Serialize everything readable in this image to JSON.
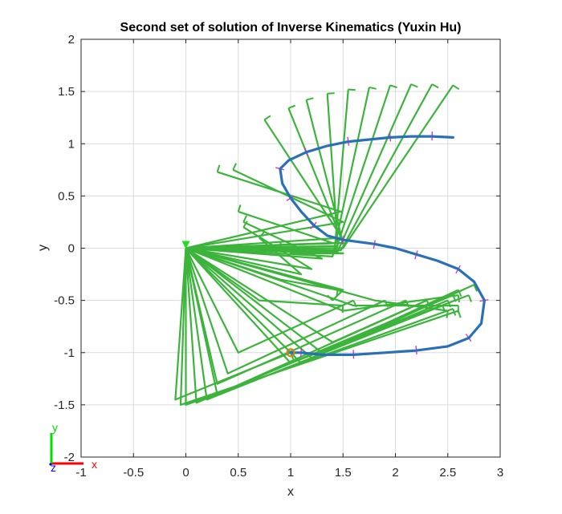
{
  "chart_data": {
    "type": "line",
    "title": "Second set of solution of Inverse Kinematics (Yuxin Hu)",
    "xlabel": "x",
    "ylabel": "y",
    "xlim": [
      -1,
      3
    ],
    "ylim": [
      -2,
      2
    ],
    "xticks": [
      "-1",
      "-0.5",
      "0",
      "0.5",
      "1",
      "1.5",
      "2",
      "2.5",
      "3"
    ],
    "yticks": [
      "-2",
      "-1.5",
      "-1",
      "-0.5",
      "0",
      "0.5",
      "1",
      "1.5",
      "2"
    ],
    "grid": true,
    "colors": {
      "path": "#2a70b8",
      "arm": "#3cb43c",
      "normals": "#e020e0",
      "start_marker": "#d08020",
      "triad_x": "#ff0000",
      "triad_y": "#00dd00",
      "triad_z": "#0000ff"
    },
    "triad_labels": {
      "x": "x",
      "y": "y",
      "z": "z"
    },
    "base": [
      0,
      0
    ],
    "start_marker": [
      1.0,
      -1.0
    ],
    "path": [
      [
        2.55,
        1.06
      ],
      [
        2.35,
        1.07
      ],
      [
        2.15,
        1.07
      ],
      [
        1.95,
        1.06
      ],
      [
        1.75,
        1.04
      ],
      [
        1.55,
        1.02
      ],
      [
        1.35,
        0.98
      ],
      [
        1.15,
        0.92
      ],
      [
        0.98,
        0.84
      ],
      [
        0.9,
        0.76
      ],
      [
        0.92,
        0.62
      ],
      [
        1.0,
        0.48
      ],
      [
        1.1,
        0.35
      ],
      [
        1.22,
        0.22
      ],
      [
        1.35,
        0.12
      ],
      [
        1.5,
        0.08
      ],
      [
        1.65,
        0.06
      ],
      [
        1.8,
        0.04
      ],
      [
        2.0,
        0.0
      ],
      [
        2.2,
        -0.06
      ],
      [
        2.4,
        -0.12
      ],
      [
        2.6,
        -0.2
      ],
      [
        2.75,
        -0.32
      ],
      [
        2.85,
        -0.5
      ],
      [
        2.82,
        -0.72
      ],
      [
        2.7,
        -0.86
      ],
      [
        2.5,
        -0.94
      ],
      [
        2.2,
        -0.98
      ],
      [
        1.9,
        -1.0
      ],
      [
        1.6,
        -1.02
      ],
      [
        1.3,
        -1.02
      ],
      [
        1.1,
        -1.0
      ],
      [
        1.0,
        -1.0
      ]
    ],
    "arm_links": [
      [
        [
          0,
          0
        ],
        [
          1.5,
          0
        ],
        [
          2.55,
          1.56
        ]
      ],
      [
        [
          0,
          0
        ],
        [
          1.48,
          -0.02
        ],
        [
          2.35,
          1.57
        ]
      ],
      [
        [
          0,
          0
        ],
        [
          1.45,
          -0.03
        ],
        [
          2.15,
          1.57
        ]
      ],
      [
        [
          0,
          0
        ],
        [
          1.42,
          -0.05
        ],
        [
          1.95,
          1.56
        ]
      ],
      [
        [
          0,
          0
        ],
        [
          1.4,
          -0.08
        ],
        [
          1.75,
          1.54
        ]
      ],
      [
        [
          0,
          0
        ],
        [
          1.42,
          -0.02
        ],
        [
          1.55,
          1.52
        ]
      ],
      [
        [
          0,
          0
        ],
        [
          1.45,
          0.02
        ],
        [
          1.35,
          1.48
        ]
      ],
      [
        [
          0,
          0
        ],
        [
          1.5,
          0.05
        ],
        [
          1.15,
          1.42
        ]
      ],
      [
        [
          0,
          0
        ],
        [
          1.5,
          0.05
        ],
        [
          0.98,
          1.34
        ]
      ],
      [
        [
          0,
          0
        ],
        [
          1.49,
          0.1
        ],
        [
          0.75,
          1.23
        ]
      ],
      [
        [
          0,
          0
        ],
        [
          1.5,
          0.25
        ],
        [
          0.45,
          0.75
        ]
      ],
      [
        [
          0,
          0
        ],
        [
          1.48,
          0.35
        ],
        [
          0.3,
          0.73
        ]
      ],
      [
        [
          0,
          0
        ],
        [
          1.4,
          0.05
        ],
        [
          0.5,
          0.35
        ]
      ],
      [
        [
          0,
          0
        ],
        [
          1.3,
          -0.1
        ],
        [
          0.55,
          0.25
        ]
      ],
      [
        [
          0,
          0
        ],
        [
          1.2,
          -0.2
        ],
        [
          0.55,
          0.2
        ]
      ],
      [
        [
          0,
          0
        ],
        [
          1.1,
          -0.25
        ],
        [
          0.7,
          0.1
        ]
      ],
      [
        [
          0,
          0
        ],
        [
          1.5,
          -0.05
        ],
        [
          0.9,
          0.0
        ]
      ],
      [
        [
          0,
          0
        ],
        [
          1.5,
          -0.05
        ],
        [
          1.0,
          -0.05
        ]
      ],
      [
        [
          0,
          0
        ],
        [
          0.9,
          -0.3
        ],
        [
          1.45,
          -0.4
        ]
      ],
      [
        [
          0,
          0
        ],
        [
          0.7,
          -0.5
        ],
        [
          1.5,
          -0.55
        ]
      ],
      [
        [
          0,
          0
        ],
        [
          0.5,
          -1.0
        ],
        [
          1.6,
          -0.5
        ]
      ],
      [
        [
          0,
          0
        ],
        [
          0.4,
          -1.2
        ],
        [
          1.9,
          -0.5
        ]
      ],
      [
        [
          0,
          0
        ],
        [
          0.3,
          -1.3
        ],
        [
          2.1,
          -0.5
        ]
      ],
      [
        [
          0,
          0
        ],
        [
          0.3,
          -1.4
        ],
        [
          2.3,
          -0.5
        ]
      ],
      [
        [
          0,
          0
        ],
        [
          0.2,
          -1.45
        ],
        [
          2.45,
          -0.55
        ]
      ],
      [
        [
          0,
          0
        ],
        [
          0.1,
          -1.48
        ],
        [
          2.55,
          -0.45
        ]
      ],
      [
        [
          0,
          0
        ],
        [
          0.0,
          -1.5
        ],
        [
          2.55,
          -0.58
        ]
      ],
      [
        [
          0,
          0
        ],
        [
          -0.05,
          -1.5
        ],
        [
          2.6,
          -0.6
        ]
      ],
      [
        [
          0,
          0
        ],
        [
          1.0,
          -1.1
        ],
        [
          2.7,
          -0.45
        ]
      ],
      [
        [
          0,
          0
        ],
        [
          1.1,
          -1.1
        ],
        [
          2.75,
          -0.35
        ]
      ],
      [
        [
          0,
          0
        ],
        [
          1.2,
          -1.05
        ],
        [
          2.6,
          -0.4
        ]
      ],
      [
        [
          0,
          0
        ],
        [
          1.3,
          -1.0
        ],
        [
          2.5,
          -0.5
        ]
      ],
      [
        [
          0,
          0
        ],
        [
          1.4,
          -0.9
        ],
        [
          2.3,
          -0.5
        ]
      ],
      [
        [
          0,
          0
        ],
        [
          1.5,
          -0.6
        ],
        [
          2.6,
          -0.45
        ]
      ],
      [
        [
          0,
          0
        ],
        [
          1.6,
          -0.55
        ],
        [
          2.6,
          -0.55
        ]
      ],
      [
        [
          0,
          0
        ],
        [
          1.8,
          -0.5
        ],
        [
          2.5,
          -0.6
        ]
      ],
      [
        [
          0,
          0
        ],
        [
          1.5,
          -0.4
        ],
        [
          1.4,
          -0.5
        ]
      ],
      [
        [
          0,
          0
        ],
        [
          -0.1,
          -1.45
        ],
        [
          1.0,
          -1.0
        ]
      ]
    ]
  }
}
